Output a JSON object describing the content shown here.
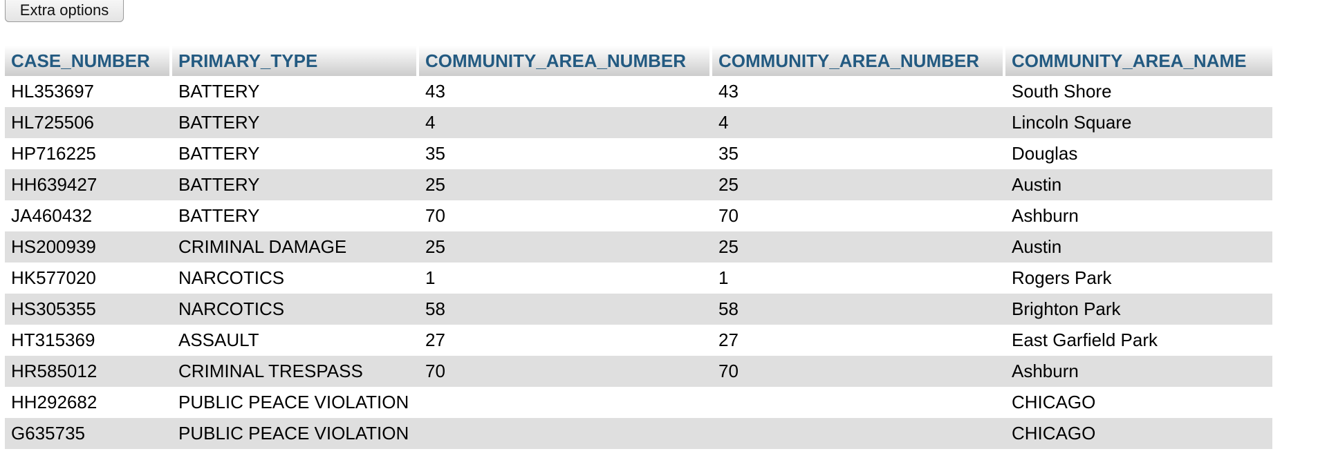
{
  "toolbar": {
    "extra_options_label": "Extra options"
  },
  "table": {
    "columns": [
      "CASE_NUMBER",
      "PRIMARY_TYPE",
      "COMMUNITY_AREA_NUMBER",
      "COMMUNITY_AREA_NUMBER",
      "COMMUNITY_AREA_NAME"
    ],
    "rows": [
      [
        "HL353697",
        "BATTERY",
        "43",
        "43",
        "South Shore"
      ],
      [
        "HL725506",
        "BATTERY",
        "4",
        "4",
        "Lincoln Square"
      ],
      [
        "HP716225",
        "BATTERY",
        "35",
        "35",
        "Douglas"
      ],
      [
        "HH639427",
        "BATTERY",
        "25",
        "25",
        "Austin"
      ],
      [
        "JA460432",
        "BATTERY",
        "70",
        "70",
        "Ashburn"
      ],
      [
        "HS200939",
        "CRIMINAL DAMAGE",
        "25",
        "25",
        "Austin"
      ],
      [
        "HK577020",
        "NARCOTICS",
        "1",
        "1",
        "Rogers Park"
      ],
      [
        "HS305355",
        "NARCOTICS",
        "58",
        "58",
        "Brighton Park"
      ],
      [
        "HT315369",
        "ASSAULT",
        "27",
        "27",
        "East Garfield Park"
      ],
      [
        "HR585012",
        "CRIMINAL TRESPASS",
        "70",
        "70",
        "Ashburn"
      ],
      [
        "HH292682",
        "PUBLIC PEACE VIOLATION",
        "",
        "",
        "CHICAGO"
      ],
      [
        "G635735",
        "PUBLIC PEACE VIOLATION",
        "",
        "",
        "CHICAGO"
      ]
    ]
  },
  "colors": {
    "header_text": "#235a81",
    "row_alt_background": "#dfdfdf"
  }
}
